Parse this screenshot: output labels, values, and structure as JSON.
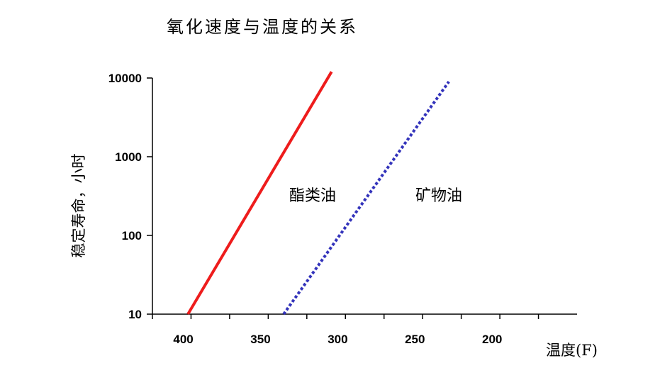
{
  "chart_data": {
    "type": "line",
    "title": "氧化速度与温度的关系",
    "xlabel": "温度(F)",
    "ylabel": "稳定寿命，小时",
    "x_reversed": true,
    "y_scale": "log",
    "xlim": [
      420,
      145
    ],
    "ylim": [
      10,
      10000
    ],
    "x_ticks": [
      400,
      350,
      300,
      250,
      200
    ],
    "y_ticks": [
      10,
      100,
      1000,
      10000
    ],
    "grid": false,
    "series": [
      {
        "name": "酯类油",
        "color": "#ee1c1c",
        "style": "solid",
        "points": [
          [
            397,
            10
          ],
          [
            304,
            12000
          ]
        ]
      },
      {
        "name": "矿物油",
        "color": "#3333bb",
        "style": "dotted",
        "points": [
          [
            335,
            10
          ],
          [
            228,
            9000
          ]
        ]
      }
    ]
  }
}
